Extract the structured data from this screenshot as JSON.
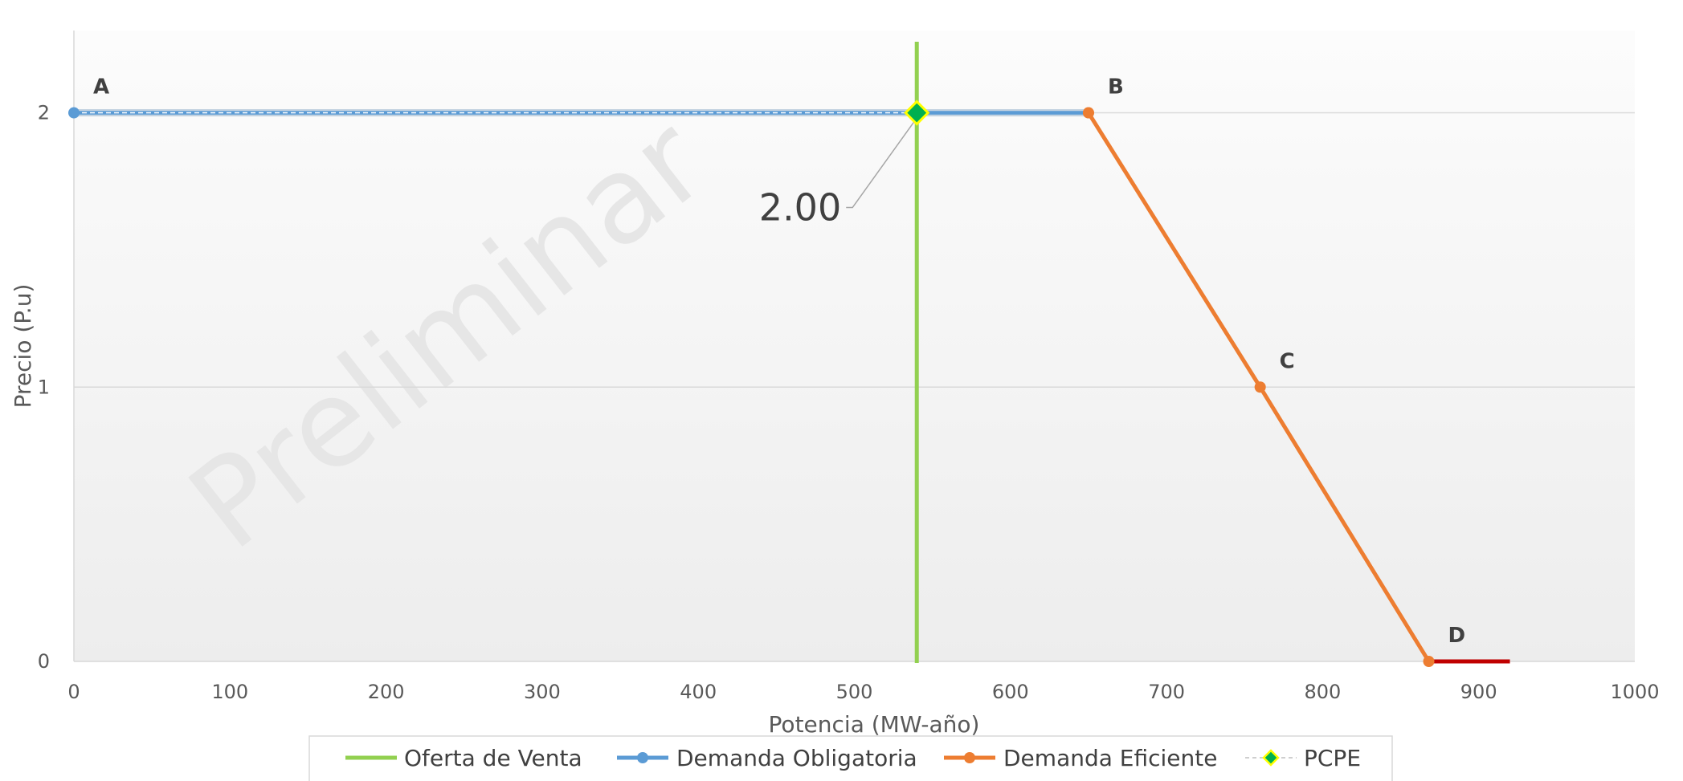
{
  "chart_data": {
    "type": "line",
    "title": "",
    "xlabel": "Potencia  (MW-año)",
    "ylabel": "Precio  (P.u)",
    "xlim": [
      0,
      1000
    ],
    "ylim": [
      0,
      2.3
    ],
    "x_ticks": [
      "0",
      "100",
      "200",
      "300",
      "400",
      "500",
      "600",
      "700",
      "800",
      "900",
      "1000"
    ],
    "y_ticks": [
      "0",
      "1",
      "2"
    ],
    "grid": "horizontal",
    "legend_position": "bottom",
    "watermark": "Preliminar",
    "series": [
      {
        "name": "Oferta de Venta",
        "color": "#92d050",
        "marker": "none",
        "points": [
          [
            540,
            0
          ],
          [
            540,
            2.3
          ]
        ]
      },
      {
        "name": "Demanda Obligatoria",
        "color": "#5b9bd5",
        "marker": "circle",
        "points": [
          [
            0,
            2
          ],
          [
            650,
            2
          ]
        ]
      },
      {
        "name": "Demanda Eficiente",
        "color": "#ed7d31",
        "marker": "circle",
        "points": [
          [
            650,
            2
          ],
          [
            760,
            1
          ],
          [
            868,
            0
          ]
        ]
      },
      {
        "name": "PCPE",
        "color": "#00b050",
        "marker": "diamond",
        "points": [
          [
            540,
            2
          ]
        ]
      }
    ],
    "extra_segment": {
      "color": "#c00000",
      "points": [
        [
          868,
          0
        ],
        [
          920,
          0
        ]
      ]
    },
    "point_labels": [
      {
        "text": "A",
        "x": 0,
        "y": 2
      },
      {
        "text": "B",
        "x": 650,
        "y": 2
      },
      {
        "text": "C",
        "x": 760,
        "y": 1
      },
      {
        "text": "D",
        "x": 868,
        "y": 0
      }
    ],
    "callout": {
      "text": "2.00",
      "x": 540,
      "y": 2
    }
  }
}
